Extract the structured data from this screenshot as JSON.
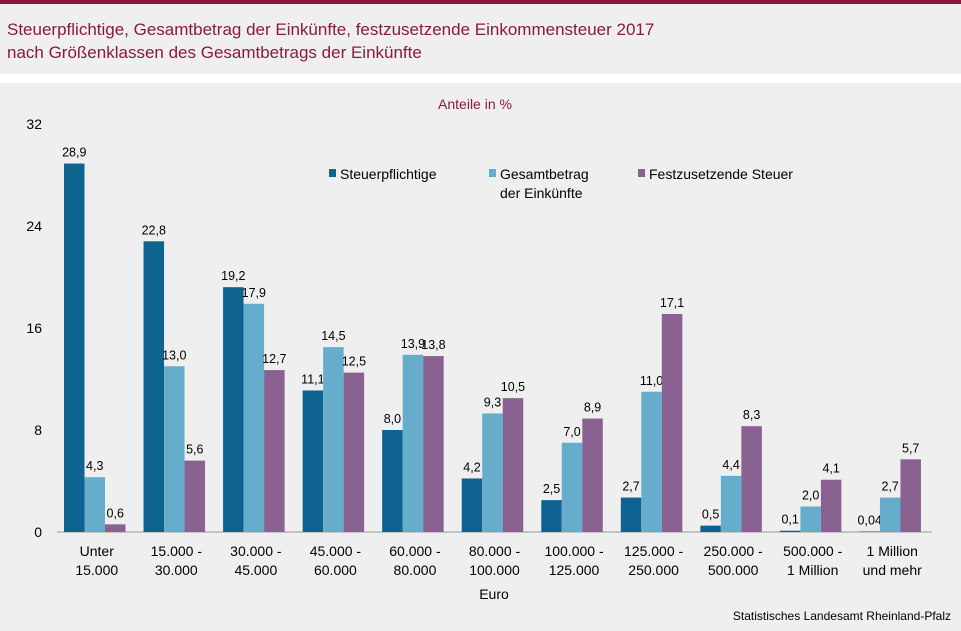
{
  "title": {
    "line1": "Steuerpflichtige, Gesamtbetrag der Einkünfte, festzusetzende Einkommensteuer 2017",
    "line2": "nach Größenklassen des Gesamtbetrags der Einkünfte"
  },
  "source": "Statistisches Landesamt Rheinland-Pfalz",
  "colors": {
    "title": "#8b1a3a",
    "series": [
      "#0e6391",
      "#66adcc",
      "#8a6292"
    ]
  },
  "chart_data": {
    "type": "bar",
    "subtitle": "Anteile in %",
    "xlabel": "Euro",
    "ylabel": "",
    "ylim": [
      0,
      32
    ],
    "yticks": [
      0,
      8,
      16,
      24,
      32
    ],
    "grid": false,
    "legend_position": "top-right",
    "categories": [
      [
        "Unter",
        "15.000"
      ],
      [
        "15.000 -",
        "30.000"
      ],
      [
        "30.000 -",
        "45.000"
      ],
      [
        "45.000 -",
        "60.000"
      ],
      [
        "60.000 -",
        "80.000"
      ],
      [
        "80.000 -",
        "100.000"
      ],
      [
        "100.000 -",
        "125.000"
      ],
      [
        "125.000 -",
        "250.000"
      ],
      [
        "250.000 -",
        "500.000"
      ],
      [
        "500.000 -",
        "1 Million"
      ],
      [
        "1 Million",
        "und mehr"
      ]
    ],
    "series": [
      {
        "name": [
          "Steuerpflichtige"
        ],
        "values": [
          28.9,
          22.8,
          19.2,
          11.1,
          8.0,
          4.2,
          2.5,
          2.7,
          0.5,
          0.1,
          0.04
        ],
        "labels": [
          "28,9",
          "22,8",
          "19,2",
          "11,1",
          "8,0",
          "4,2",
          "2,5",
          "2,7",
          "0,5",
          "0,1",
          "0,04"
        ]
      },
      {
        "name": [
          "Gesamtbetrag",
          "der Einkünfte"
        ],
        "values": [
          4.3,
          13.0,
          17.9,
          14.5,
          13.9,
          9.3,
          7.0,
          11.0,
          4.4,
          2.0,
          2.7
        ],
        "labels": [
          "4,3",
          "13,0",
          "17,9",
          "14,5",
          "13,9",
          "9,3",
          "7,0",
          "11,0",
          "4,4",
          "2,0",
          "2,7"
        ]
      },
      {
        "name": [
          "Festzusetzende Steuer"
        ],
        "values": [
          0.6,
          5.6,
          12.7,
          12.5,
          13.8,
          10.5,
          8.9,
          17.1,
          8.3,
          4.1,
          5.7
        ],
        "labels": [
          "0,6",
          "5,6",
          "12,7",
          "12,5",
          "13,8",
          "10,5",
          "8,9",
          "17,1",
          "8,3",
          "4,1",
          "5,7"
        ]
      }
    ]
  }
}
